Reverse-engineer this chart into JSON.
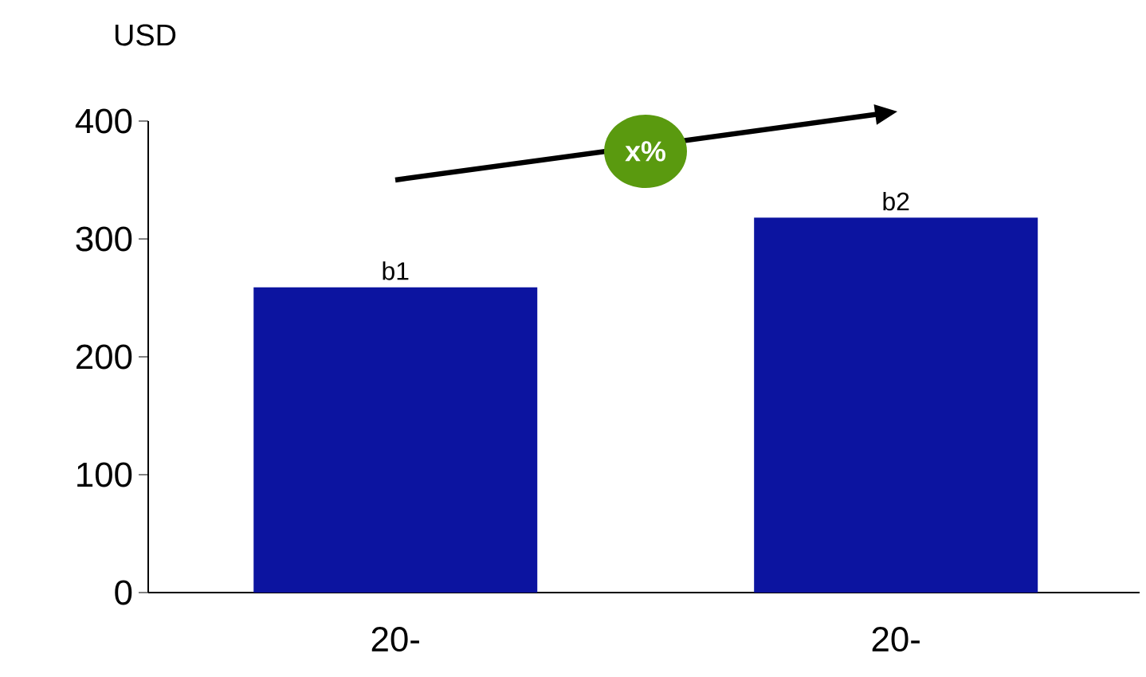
{
  "chart_data": {
    "type": "bar",
    "ylabel": "USD",
    "categories": [
      "20-",
      "20-"
    ],
    "values": [
      259,
      318
    ],
    "color": "#0c14a0",
    "value_labels": [
      "b1",
      "b2"
    ],
    "ylim": [
      0,
      400
    ],
    "yticks": [
      0,
      100,
      200,
      300,
      400
    ],
    "annotations": [
      "x%"
    ]
  }
}
